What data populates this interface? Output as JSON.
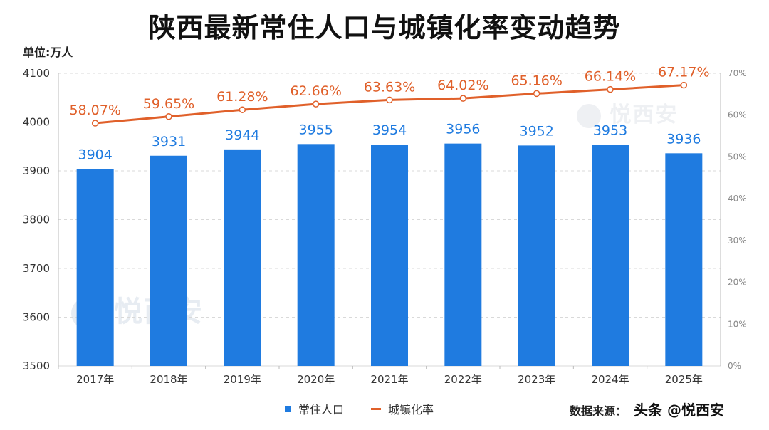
{
  "title": "陕西最新常住人口与城镇化率变动趋势",
  "unit_label": "单位:万人",
  "source_label": "数据来源：",
  "source_handle": "头条 @悦西安",
  "watermark": "悦西安",
  "colors": {
    "bar": "#1f7be0",
    "line": "#e0602a",
    "bar_label": "#1f7be0",
    "line_label": "#e0602a",
    "grid": "#d9d9d9"
  },
  "chart_data": {
    "type": "bar+line",
    "title": "陕西最新常住人口与城镇化率变动趋势",
    "categories": [
      "2017年",
      "2018年",
      "2019年",
      "2020年",
      "2021年",
      "2022年",
      "2023年",
      "2024年",
      "2025年"
    ],
    "series": [
      {
        "name": "常住人口",
        "type": "bar",
        "axis": "left",
        "values": [
          3904,
          3931,
          3944,
          3955,
          3954,
          3956,
          3952,
          3953,
          3936
        ],
        "labels": [
          "3904",
          "3931",
          "3944",
          "3955",
          "3954",
          "3956",
          "3952",
          "3953",
          "3936"
        ]
      },
      {
        "name": "城镇化率",
        "type": "line",
        "axis": "right",
        "values": [
          58.07,
          59.65,
          61.28,
          62.66,
          63.63,
          64.02,
          65.16,
          66.14,
          67.17
        ],
        "labels": [
          "58.07%",
          "59.65%",
          "61.28%",
          "62.66%",
          "63.63%",
          "64.02%",
          "65.16%",
          "66.14%",
          "67.17%"
        ]
      }
    ],
    "y_left": {
      "range": [
        3500,
        4100
      ],
      "ticks": [
        3500,
        3600,
        3700,
        3800,
        3900,
        4000,
        4100
      ],
      "tick_labels": [
        "3500",
        "3600",
        "3700",
        "3800",
        "3900",
        "4000",
        "4100"
      ]
    },
    "y_right": {
      "range": [
        0,
        70
      ],
      "ticks": [
        0,
        10,
        20,
        30,
        40,
        50,
        60,
        70
      ],
      "tick_labels": [
        "0%",
        "10%",
        "20%",
        "30%",
        "40%",
        "50%",
        "60%",
        "70%"
      ]
    },
    "legend": [
      "常住人口",
      "城镇化率"
    ],
    "legend_position": "bottom-center",
    "grid": true
  }
}
